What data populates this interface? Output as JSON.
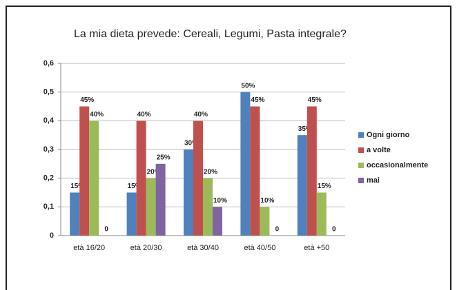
{
  "chart_data": {
    "type": "bar",
    "title": "La mia dieta prevede: Cereali, Legumi, Pasta integrale?",
    "categories": [
      "età 16/20",
      "età 20/30",
      "età 30/40",
      "età 40/50",
      "età +50"
    ],
    "series": [
      {
        "name": "Ogni giorno",
        "color": "#4f81bd",
        "values": [
          0.15,
          0.15,
          0.3,
          0.5,
          0.35
        ],
        "value_labels": [
          "15%",
          "15%",
          "30%",
          "50%",
          "35%"
        ]
      },
      {
        "name": "a volte",
        "color": "#c0504d",
        "values": [
          0.45,
          0.4,
          0.4,
          0.45,
          0.45
        ],
        "value_labels": [
          "45%",
          "40%",
          "40%",
          "45%",
          "45%"
        ]
      },
      {
        "name": "occasionalmente",
        "color": "#9bbb59",
        "values": [
          0.4,
          0.2,
          0.2,
          0.1,
          0.15
        ],
        "value_labels": [
          "40%",
          "20%",
          "20%",
          "10%",
          "15%"
        ]
      },
      {
        "name": "mai",
        "color": "#8064a2",
        "values": [
          0,
          0.25,
          0.1,
          0,
          0
        ],
        "value_labels": [
          "0",
          "25%",
          "10%",
          "0",
          "0"
        ]
      }
    ],
    "ylim": [
      0,
      0.6
    ],
    "yticks": [
      0,
      {
        "value": 0.1,
        "label": "0,1"
      },
      {
        "value": 0.2,
        "label": "0,2"
      },
      {
        "value": 0.3,
        "label": "0,3"
      },
      {
        "value": 0.4,
        "label": "0,4"
      },
      {
        "value": 0.5,
        "label": "0,5"
      },
      {
        "value": 0.6,
        "label": "0,6"
      }
    ],
    "grid": true,
    "legend": "right"
  }
}
